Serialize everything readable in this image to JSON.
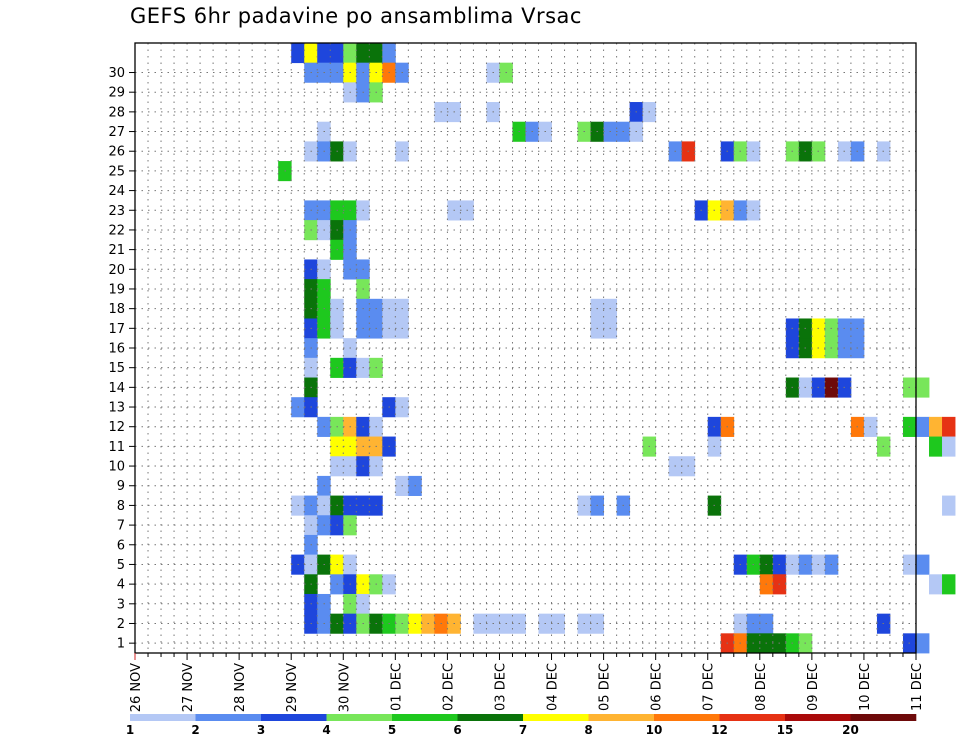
{
  "chart_data": {
    "type": "heatmap",
    "title": "GEFS 6hr padavine po ansamblima Vrsac",
    "xlabel": "",
    "ylabel": "",
    "x_ticks": [
      "26 NOV",
      "27 NOV",
      "28 NOV",
      "29 NOV",
      "30 NOV",
      "01 DEC",
      "02 DEC",
      "03 DEC",
      "04 DEC",
      "05 DEC",
      "06 DEC",
      "07 DEC",
      "08 DEC",
      "09 DEC",
      "10 DEC",
      "11 DEC"
    ],
    "y_ticks": [
      "1",
      "2",
      "3",
      "4",
      "5",
      "6",
      "7",
      "8",
      "9",
      "10",
      "11",
      "12",
      "13",
      "14",
      "15",
      "16",
      "17",
      "18",
      "19",
      "20",
      "21",
      "22",
      "23",
      "24",
      "25",
      "26",
      "27",
      "28",
      "29",
      "30"
    ],
    "time_step_hours": 6,
    "members": 30,
    "grid": true,
    "legend": {
      "placement": "bottom",
      "thresholds": [
        "1",
        "2",
        "3",
        "4",
        "5",
        "6",
        "7",
        "8",
        "10",
        "12",
        "15",
        "20"
      ],
      "colors": [
        "#b4c8f5",
        "#5a8cf0",
        "#1e46dc",
        "#78e65a",
        "#1ec81e",
        "#0a730a",
        "#ffff00",
        "#ffb432",
        "#ff780a",
        "#e63214",
        "#aa0a0a",
        "#6e0a0a"
      ]
    },
    "cells": [
      [
        30,
        12,
        "c"
      ],
      [
        30,
        13,
        "g"
      ],
      [
        30,
        14,
        "c"
      ],
      [
        30,
        15,
        "c"
      ],
      [
        30,
        16,
        "d"
      ],
      [
        30,
        17,
        "f"
      ],
      [
        30,
        18,
        "f"
      ],
      [
        30,
        19,
        "b"
      ],
      [
        29,
        13,
        "b"
      ],
      [
        29,
        14,
        "b"
      ],
      [
        29,
        15,
        "b"
      ],
      [
        29,
        16,
        "g"
      ],
      [
        29,
        17,
        "b"
      ],
      [
        29,
        18,
        "g"
      ],
      [
        29,
        19,
        "i"
      ],
      [
        29,
        20,
        "b"
      ],
      [
        29,
        27,
        "a"
      ],
      [
        29,
        28,
        "d"
      ],
      [
        29,
        73,
        "i"
      ],
      [
        29,
        74,
        "c"
      ],
      [
        29,
        75,
        "a"
      ],
      [
        29,
        77,
        "a"
      ],
      [
        28,
        16,
        "a"
      ],
      [
        28,
        17,
        "b"
      ],
      [
        28,
        18,
        "d"
      ],
      [
        28,
        84,
        "a"
      ],
      [
        27,
        23,
        "a"
      ],
      [
        27,
        24,
        "a"
      ],
      [
        27,
        27,
        "a"
      ],
      [
        27,
        38,
        "c"
      ],
      [
        27,
        39,
        "a"
      ],
      [
        27,
        80,
        "a"
      ],
      [
        27,
        81,
        "a"
      ],
      [
        27,
        83,
        "b"
      ],
      [
        27,
        85,
        "b"
      ],
      [
        27,
        86,
        "b"
      ],
      [
        26,
        14,
        "a"
      ],
      [
        26,
        29,
        "e"
      ],
      [
        26,
        30,
        "b"
      ],
      [
        26,
        31,
        "a"
      ],
      [
        26,
        34,
        "d"
      ],
      [
        26,
        35,
        "f"
      ],
      [
        26,
        36,
        "b"
      ],
      [
        26,
        37,
        "b"
      ],
      [
        26,
        38,
        "a"
      ],
      [
        25,
        13,
        "a"
      ],
      [
        25,
        14,
        "b"
      ],
      [
        25,
        15,
        "f"
      ],
      [
        25,
        16,
        "a"
      ],
      [
        25,
        20,
        "a"
      ],
      [
        25,
        41,
        "b"
      ],
      [
        25,
        42,
        "j"
      ],
      [
        25,
        45,
        "c"
      ],
      [
        25,
        46,
        "d"
      ],
      [
        25,
        47,
        "a"
      ],
      [
        25,
        50,
        "d"
      ],
      [
        25,
        51,
        "f"
      ],
      [
        25,
        52,
        "d"
      ],
      [
        25,
        54,
        "a"
      ],
      [
        25,
        55,
        "b"
      ],
      [
        25,
        57,
        "a"
      ],
      [
        24,
        11,
        "e"
      ],
      [
        24,
        74,
        "a"
      ],
      [
        23,
        82,
        "a"
      ],
      [
        23,
        83,
        "a"
      ],
      [
        22,
        13,
        "b"
      ],
      [
        22,
        14,
        "b"
      ],
      [
        22,
        15,
        "e"
      ],
      [
        22,
        16,
        "e"
      ],
      [
        22,
        17,
        "a"
      ],
      [
        22,
        24,
        "a"
      ],
      [
        22,
        25,
        "a"
      ],
      [
        22,
        43,
        "c"
      ],
      [
        22,
        44,
        "g"
      ],
      [
        22,
        45,
        "h"
      ],
      [
        22,
        46,
        "b"
      ],
      [
        22,
        47,
        "a"
      ],
      [
        22,
        86,
        "b"
      ],
      [
        22,
        87,
        "a"
      ],
      [
        21,
        13,
        "d"
      ],
      [
        21,
        14,
        "a"
      ],
      [
        21,
        15,
        "f"
      ],
      [
        21,
        16,
        "b"
      ],
      [
        21,
        72,
        "a"
      ],
      [
        20,
        15,
        "e"
      ],
      [
        20,
        16,
        "b"
      ],
      [
        20,
        72,
        "b"
      ],
      [
        20,
        73,
        "d"
      ],
      [
        20,
        74,
        "a"
      ],
      [
        20,
        80,
        "b"
      ],
      [
        20,
        82,
        "b"
      ],
      [
        20,
        84,
        "a"
      ],
      [
        20,
        86,
        "a"
      ],
      [
        19,
        13,
        "c"
      ],
      [
        19,
        14,
        "a"
      ],
      [
        19,
        16,
        "b"
      ],
      [
        19,
        17,
        "b"
      ],
      [
        19,
        71,
        "d"
      ],
      [
        19,
        72,
        "a"
      ],
      [
        19,
        74,
        "e"
      ],
      [
        19,
        76,
        "a"
      ],
      [
        19,
        85,
        "a"
      ],
      [
        19,
        86,
        "a"
      ],
      [
        18,
        13,
        "f"
      ],
      [
        18,
        14,
        "e"
      ],
      [
        18,
        17,
        "d"
      ],
      [
        18,
        73,
        "a"
      ],
      [
        18,
        74,
        "f"
      ],
      [
        17,
        13,
        "f"
      ],
      [
        17,
        14,
        "e"
      ],
      [
        17,
        15,
        "a"
      ],
      [
        17,
        17,
        "b"
      ],
      [
        17,
        18,
        "b"
      ],
      [
        17,
        19,
        "a"
      ],
      [
        17,
        20,
        "a"
      ],
      [
        17,
        35,
        "a"
      ],
      [
        17,
        36,
        "a"
      ],
      [
        16,
        13,
        "c"
      ],
      [
        16,
        14,
        "e"
      ],
      [
        16,
        15,
        "a"
      ],
      [
        16,
        17,
        "b"
      ],
      [
        16,
        18,
        "b"
      ],
      [
        16,
        19,
        "a"
      ],
      [
        16,
        20,
        "a"
      ],
      [
        16,
        35,
        "a"
      ],
      [
        16,
        36,
        "a"
      ],
      [
        16,
        50,
        "c"
      ],
      [
        16,
        51,
        "f"
      ],
      [
        16,
        52,
        "g"
      ],
      [
        16,
        53,
        "d"
      ],
      [
        16,
        54,
        "b"
      ],
      [
        16,
        55,
        "b"
      ],
      [
        15,
        13,
        "b"
      ],
      [
        15,
        16,
        "a"
      ],
      [
        15,
        50,
        "c"
      ],
      [
        15,
        51,
        "f"
      ],
      [
        15,
        52,
        "g"
      ],
      [
        15,
        53,
        "d"
      ],
      [
        15,
        54,
        "b"
      ],
      [
        15,
        55,
        "b"
      ],
      [
        14,
        13,
        "a"
      ],
      [
        14,
        15,
        "e"
      ],
      [
        14,
        16,
        "c"
      ],
      [
        14,
        17,
        "a"
      ],
      [
        14,
        18,
        "d"
      ],
      [
        13,
        13,
        "f"
      ],
      [
        13,
        50,
        "f"
      ],
      [
        13,
        51,
        "a"
      ],
      [
        13,
        52,
        "c"
      ],
      [
        13,
        53,
        "l"
      ],
      [
        13,
        54,
        "c"
      ],
      [
        13,
        59,
        "d"
      ],
      [
        13,
        60,
        "d"
      ],
      [
        12,
        12,
        "b"
      ],
      [
        12,
        13,
        "c"
      ],
      [
        12,
        19,
        "c"
      ],
      [
        12,
        20,
        "a"
      ],
      [
        11,
        14,
        "b"
      ],
      [
        11,
        15,
        "d"
      ],
      [
        11,
        16,
        "h"
      ],
      [
        11,
        17,
        "c"
      ],
      [
        11,
        18,
        "a"
      ],
      [
        11,
        44,
        "c"
      ],
      [
        11,
        45,
        "i"
      ],
      [
        11,
        55,
        "i"
      ],
      [
        11,
        56,
        "a"
      ],
      [
        11,
        59,
        "e"
      ],
      [
        11,
        60,
        "b"
      ],
      [
        11,
        61,
        "h"
      ],
      [
        11,
        62,
        "j"
      ],
      [
        10,
        15,
        "g"
      ],
      [
        10,
        16,
        "g"
      ],
      [
        10,
        17,
        "h"
      ],
      [
        10,
        18,
        "h"
      ],
      [
        10,
        19,
        "c"
      ],
      [
        10,
        39,
        "d"
      ],
      [
        10,
        44,
        "a"
      ],
      [
        10,
        57,
        "d"
      ],
      [
        10,
        61,
        "e"
      ],
      [
        10,
        62,
        "a"
      ],
      [
        9,
        15,
        "a"
      ],
      [
        9,
        16,
        "a"
      ],
      [
        9,
        17,
        "c"
      ],
      [
        9,
        18,
        "a"
      ],
      [
        9,
        41,
        "a"
      ],
      [
        9,
        42,
        "a"
      ],
      [
        8,
        14,
        "b"
      ],
      [
        8,
        20,
        "a"
      ],
      [
        8,
        21,
        "b"
      ],
      [
        8,
        76,
        "a"
      ],
      [
        7,
        12,
        "a"
      ],
      [
        7,
        13,
        "b"
      ],
      [
        7,
        14,
        "a"
      ],
      [
        7,
        15,
        "f"
      ],
      [
        7,
        16,
        "c"
      ],
      [
        7,
        17,
        "c"
      ],
      [
        7,
        18,
        "c"
      ],
      [
        7,
        34,
        "a"
      ],
      [
        7,
        35,
        "b"
      ],
      [
        7,
        37,
        "b"
      ],
      [
        7,
        44,
        "f"
      ],
      [
        7,
        62,
        "a"
      ],
      [
        6,
        13,
        "a"
      ],
      [
        6,
        14,
        "b"
      ],
      [
        6,
        15,
        "c"
      ],
      [
        6,
        16,
        "d"
      ],
      [
        5,
        13,
        "b"
      ],
      [
        4,
        12,
        "c"
      ],
      [
        4,
        13,
        "a"
      ],
      [
        4,
        14,
        "f"
      ],
      [
        4,
        15,
        "g"
      ],
      [
        4,
        16,
        "a"
      ],
      [
        4,
        46,
        "c"
      ],
      [
        4,
        47,
        "e"
      ],
      [
        4,
        48,
        "f"
      ],
      [
        4,
        49,
        "c"
      ],
      [
        4,
        50,
        "a"
      ],
      [
        4,
        51,
        "b"
      ],
      [
        4,
        52,
        "a"
      ],
      [
        4,
        53,
        "b"
      ],
      [
        4,
        59,
        "a"
      ],
      [
        4,
        60,
        "b"
      ],
      [
        3,
        13,
        "f"
      ],
      [
        3,
        15,
        "b"
      ],
      [
        3,
        16,
        "c"
      ],
      [
        3,
        17,
        "g"
      ],
      [
        3,
        18,
        "d"
      ],
      [
        3,
        19,
        "a"
      ],
      [
        3,
        48,
        "i"
      ],
      [
        3,
        49,
        "j"
      ],
      [
        3,
        61,
        "a"
      ],
      [
        3,
        62,
        "e"
      ],
      [
        2,
        13,
        "c"
      ],
      [
        2,
        14,
        "b"
      ],
      [
        2,
        16,
        "d"
      ],
      [
        2,
        17,
        "a"
      ],
      [
        1,
        13,
        "c"
      ],
      [
        1,
        14,
        "b"
      ],
      [
        1,
        15,
        "f"
      ],
      [
        1,
        16,
        "c"
      ],
      [
        1,
        17,
        "d"
      ],
      [
        1,
        18,
        "f"
      ],
      [
        1,
        19,
        "e"
      ],
      [
        1,
        20,
        "d"
      ],
      [
        1,
        21,
        "g"
      ],
      [
        1,
        22,
        "h"
      ],
      [
        1,
        23,
        "i"
      ],
      [
        1,
        24,
        "h"
      ],
      [
        1,
        26,
        "a"
      ],
      [
        1,
        27,
        "a"
      ],
      [
        1,
        28,
        "a"
      ],
      [
        1,
        29,
        "a"
      ],
      [
        1,
        31,
        "a"
      ],
      [
        1,
        32,
        "a"
      ],
      [
        1,
        34,
        "a"
      ],
      [
        1,
        35,
        "a"
      ],
      [
        1,
        46,
        "a"
      ],
      [
        1,
        47,
        "b"
      ],
      [
        1,
        48,
        "b"
      ],
      [
        1,
        57,
        "c"
      ],
      [
        0,
        45,
        "j"
      ],
      [
        0,
        46,
        "i"
      ],
      [
        0,
        47,
        "f"
      ],
      [
        0,
        48,
        "f"
      ],
      [
        0,
        49,
        "f"
      ],
      [
        0,
        50,
        "e"
      ],
      [
        0,
        51,
        "d"
      ],
      [
        0,
        59,
        "c"
      ],
      [
        0,
        60,
        "b"
      ]
    ]
  }
}
